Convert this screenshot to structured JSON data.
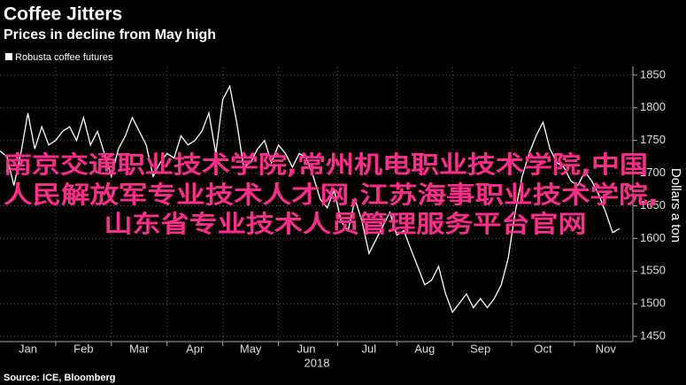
{
  "chart_data": {
    "type": "line",
    "title": "Coffee Jitters",
    "subtitle": "Prices in decline from May high",
    "x_label": "2018",
    "y_label": "Dollars a ton",
    "source": "Source: ICE, Bloomberg",
    "overlay_text": [
      "南京交通职业技术学院,常州机电职业技术学院,中国",
      "人民解放军专业技术人才网,江苏海事职业技术学院,",
      "山东省专业技术人员管理服务平台官网"
    ],
    "categories": [
      null,
      null,
      null,
      null,
      "Jan",
      null,
      null,
      null,
      null,
      null,
      null,
      null,
      "Feb",
      null,
      null,
      null,
      null,
      null,
      null,
      null,
      "Mar",
      null,
      null,
      null,
      null,
      null,
      null,
      null,
      "Apr",
      null,
      null,
      null,
      null,
      null,
      null,
      null,
      "May",
      null,
      null,
      null,
      null,
      null,
      null,
      null,
      "Jun",
      null,
      null,
      null,
      null,
      null,
      null,
      null,
      null,
      "Jul",
      null,
      null,
      null,
      null,
      null,
      null,
      null,
      "Aug",
      null,
      null,
      null,
      null,
      null,
      null,
      null,
      "Sep",
      null,
      null,
      null,
      null,
      null,
      null,
      null,
      null,
      "Oct",
      null,
      null,
      null,
      null,
      null,
      null,
      null,
      null,
      "Nov",
      null,
      null
    ],
    "series": [
      {
        "name": "Robusta coffee futures",
        "color": "#ffffff",
        "values": [
          1734,
          1725,
          1681,
          1730,
          1792,
          1737,
          1771,
          1743,
          1750,
          1764,
          1771,
          1750,
          1785,
          1743,
          1764,
          1730,
          1695,
          1737,
          1757,
          1785,
          1764,
          1743,
          1695,
          1716,
          1730,
          1723,
          1757,
          1743,
          1750,
          1764,
          1792,
          1730,
          1813,
          1833,
          1778,
          1709,
          1716,
          1737,
          1750,
          1716,
          1743,
          1730,
          1709,
          1730,
          1723,
          1695,
          1660,
          1647,
          1674,
          1626,
          1612,
          1660,
          1626,
          1577,
          1598,
          1619,
          1640,
          1605,
          1612,
          1584,
          1557,
          1529,
          1536,
          1557,
          1515,
          1487,
          1501,
          1515,
          1494,
          1508,
          1494,
          1508,
          1529,
          1570,
          1640,
          1695,
          1730,
          1757,
          1778,
          1737,
          1716,
          1709,
          1688,
          1681,
          1702,
          1688,
          1667,
          1640,
          1609,
          1615
        ]
      }
    ],
    "ylim": [
      1442,
      1862
    ],
    "yticks": [
      1450,
      1500,
      1550,
      1600,
      1650,
      1700,
      1750,
      1800,
      1850
    ],
    "grid": true,
    "legend": "top-left"
  }
}
